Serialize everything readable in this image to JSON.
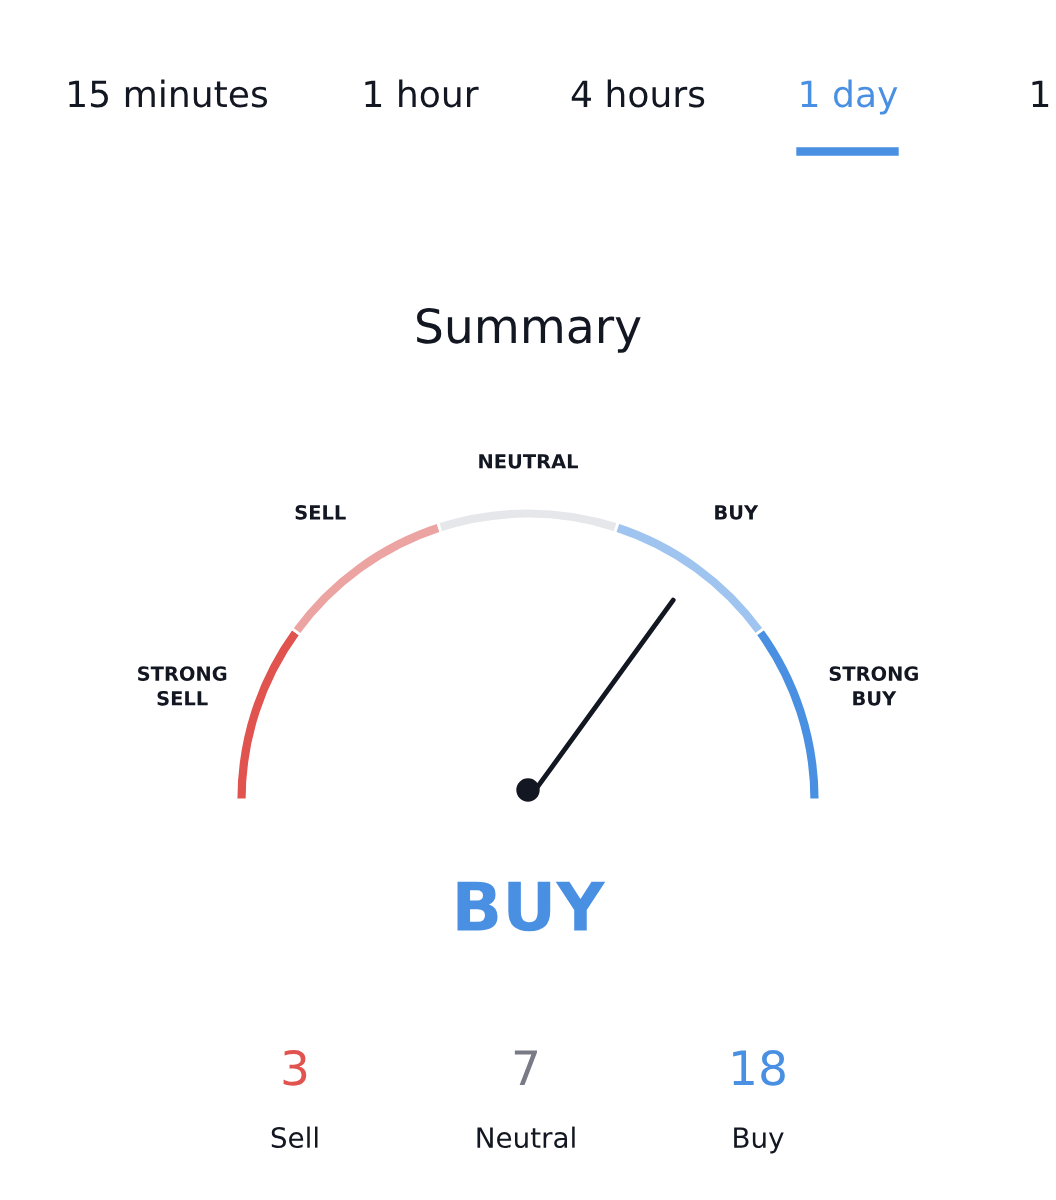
{
  "chart_data": {
    "type": "donut",
    "title": "Summary",
    "categories": [
      "STRONG SELL",
      "SELL",
      "NEUTRAL",
      "BUY",
      "STRONG BUY"
    ],
    "values": [
      20,
      20,
      20,
      20,
      20
    ],
    "colors": [
      "#e0534e",
      "#eca4a2",
      "#e6e7ea",
      "#9ec4ef",
      "#4a90e2"
    ],
    "needle": "BUY",
    "annotations": [
      "15 minutes",
      "1 hour",
      "4 hours",
      "1 day",
      "1",
      "BUY",
      "3",
      "Sell",
      "7",
      "Neutral",
      "18",
      "Buy"
    ]
  }
}
